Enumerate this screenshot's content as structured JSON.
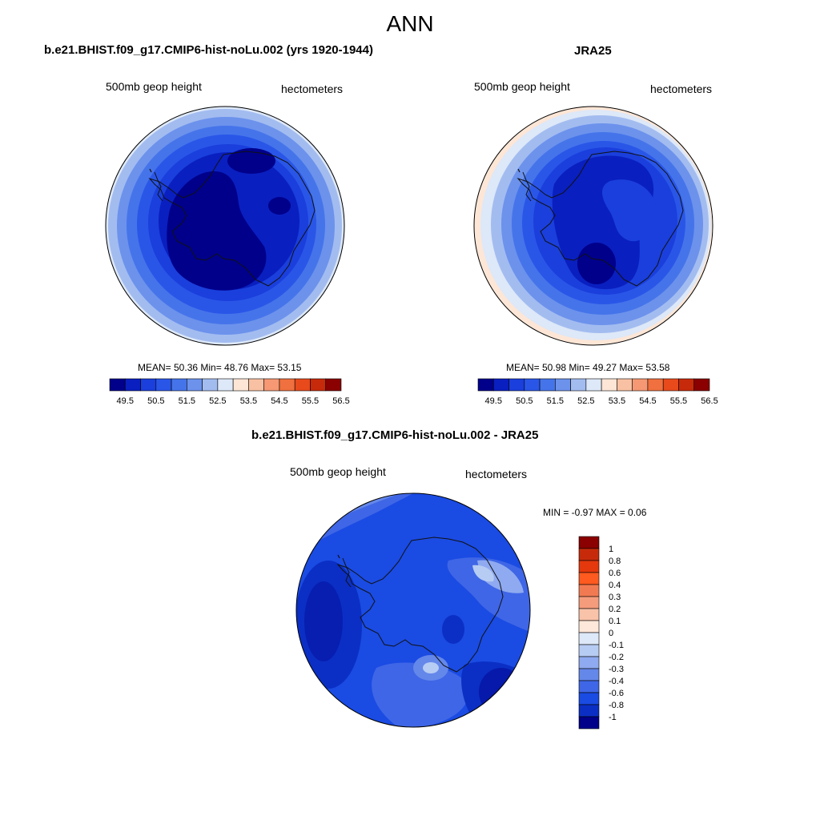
{
  "figure": {
    "title": "ANN"
  },
  "panels": [
    {
      "title": "b.e21.BHIST.f09_g17.CMIP6-hist-noLu.002 (yrs 1920-1944)",
      "left_label": "500mb geop height",
      "right_label": "hectometers",
      "stats": "MEAN=  50.36  Min=  48.76  Max=  53.15"
    },
    {
      "title": "JRA25",
      "left_label": "500mb geop height",
      "right_label": "hectometers",
      "stats": "MEAN=  50.98  Min=  49.27  Max=  53.58"
    },
    {
      "title": "b.e21.BHIST.f09_g17.CMIP6-hist-noLu.002 - JRA25",
      "left_label": "500mb geop height",
      "right_label": "hectometers",
      "stats": "MIN =  -0.97 MAX =   0.06"
    }
  ],
  "colorbar_abs": {
    "colors": [
      "#00008b",
      "#0a1fbf",
      "#1a3fdc",
      "#2a56e8",
      "#4574ea",
      "#6c92ec",
      "#a3bcf0",
      "#dde8f8",
      "#fde6d6",
      "#f9c1a3",
      "#f59873",
      "#f0703f",
      "#e84a1c",
      "#c72a0a",
      "#8b0000"
    ],
    "labels": [
      "49.5",
      "50.5",
      "51.5",
      "52.5",
      "53.5",
      "54.5",
      "55.5",
      "56.5"
    ]
  },
  "colorbar_diff": {
    "colors": [
      "#8b0000",
      "#c72a0a",
      "#e5380d",
      "#ff5a1f",
      "#f27a52",
      "#f59c7c",
      "#f9c3a9",
      "#fde8da",
      "#dde8f8",
      "#b7ccf3",
      "#8faaf0",
      "#6487ea",
      "#3f66e6",
      "#1a4be3",
      "#0b2fc4",
      "#00008b"
    ],
    "labels": [
      "1",
      "0.8",
      "0.6",
      "0.4",
      "0.3",
      "0.2",
      "0.1",
      "0",
      "-0.1",
      "-0.2",
      "-0.3",
      "-0.4",
      "-0.6",
      "-0.8",
      "-1"
    ]
  }
}
